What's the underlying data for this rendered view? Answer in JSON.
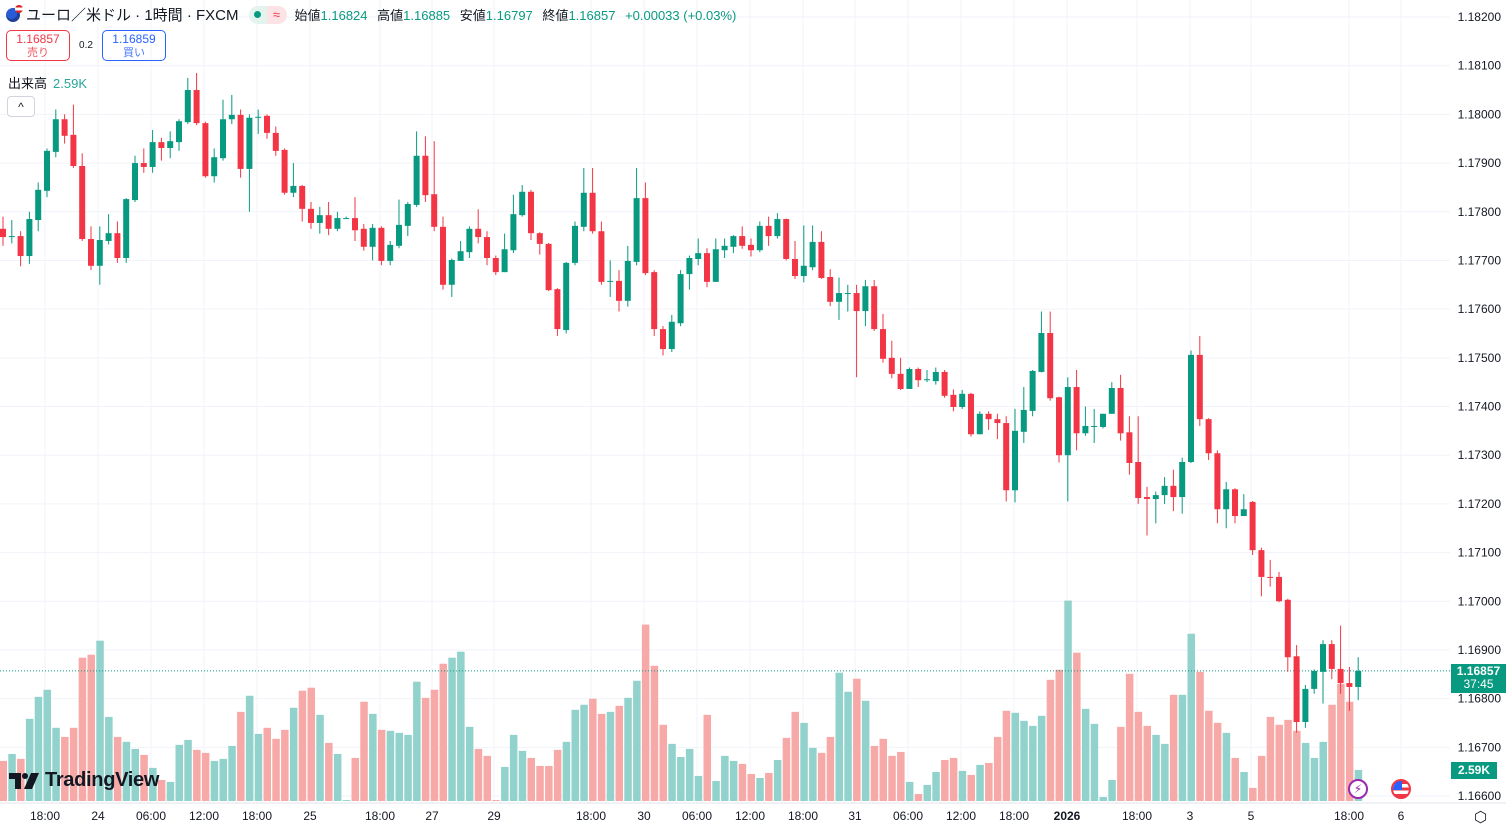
{
  "header": {
    "symbol_title": "ユーロ／米ドル · 1時間 · FXCM",
    "market_status": "open",
    "wave_icon": "≈",
    "ohlc": {
      "open_label": "始値",
      "open": "1.16824",
      "high_label": "高値",
      "high": "1.16885",
      "low_label": "安値",
      "low": "1.16797",
      "close_label": "終値",
      "close": "1.16857",
      "change": "+0.00033 (+0.03%)"
    }
  },
  "trade": {
    "sell_price": "1.16857",
    "sell_label": "売り",
    "spread": "0.2",
    "buy_price": "1.16859",
    "buy_label": "買い"
  },
  "volume_legend": {
    "label": "出来高",
    "value": "2.59K"
  },
  "collapse_icon": "^",
  "price_tag": {
    "price": "1.16857",
    "countdown": "37:45"
  },
  "volume_tag": "2.59K",
  "logo_text": "TradingView",
  "colors": {
    "up": "#089981",
    "down": "#f23645",
    "volume_up": "#92d2cc",
    "volume_down": "#f7a9a7",
    "buy": "#2962ff",
    "grid": "#f0f3fa"
  },
  "chart_data": {
    "type": "candlestick",
    "title": "ユーロ／米ドル · 1時間 · FXCM",
    "ylim": [
      1.166,
      1.182
    ],
    "y_ticks": [
      "1.18200",
      "1.18100",
      "1.18000",
      "1.17900",
      "1.17800",
      "1.17700",
      "1.17600",
      "1.17500",
      "1.17400",
      "1.17300",
      "1.17200",
      "1.17100",
      "1.17000",
      "1.16900",
      "1.16800",
      "1.16700",
      "1.16600"
    ],
    "x_ticks": [
      {
        "label": "18:00"
      },
      {
        "label": "24"
      },
      {
        "label": "06:00"
      },
      {
        "label": "12:00"
      },
      {
        "label": "18:00"
      },
      {
        "label": "25"
      },
      {
        "label": "18:00"
      },
      {
        "label": "27"
      },
      {
        "label": "29"
      },
      {
        "label": "18:00"
      },
      {
        "label": "30"
      },
      {
        "label": "06:00"
      },
      {
        "label": "12:00"
      },
      {
        "label": "18:00"
      },
      {
        "label": "31"
      },
      {
        "label": "06:00"
      },
      {
        "label": "12:00"
      },
      {
        "label": "18:00"
      },
      {
        "label": "2026",
        "bold": true
      },
      {
        "label": "18:00"
      },
      {
        "label": "3"
      },
      {
        "label": "5"
      },
      {
        "label": "18:00"
      },
      {
        "label": "6"
      }
    ],
    "grid": true,
    "ohlc_columns": [
      "open",
      "high",
      "low",
      "close"
    ],
    "candles": [
      [
        1.17765,
        1.1779,
        1.1773,
        1.17748
      ],
      [
        1.1775,
        1.17783,
        1.17735,
        1.1775
      ],
      [
        1.1775,
        1.1776,
        1.17688,
        1.17709
      ],
      [
        1.17709,
        1.178,
        1.17693,
        1.17785
      ],
      [
        1.17783,
        1.1786,
        1.1776,
        1.17845
      ],
      [
        1.17843,
        1.1793,
        1.1783,
        1.17925
      ],
      [
        1.17923,
        1.1801,
        1.17912,
        1.1799
      ],
      [
        1.1799,
        1.18,
        1.1794,
        1.17956
      ],
      [
        1.17958,
        1.1802,
        1.1789,
        1.17894
      ],
      [
        1.17894,
        1.1792,
        1.1774,
        1.17744
      ],
      [
        1.17744,
        1.1777,
        1.1768,
        1.17689
      ],
      [
        1.17689,
        1.1777,
        1.1765,
        1.17742
      ],
      [
        1.1774,
        1.17795,
        1.17733,
        1.17756
      ],
      [
        1.17756,
        1.1778,
        1.17695,
        1.17705
      ],
      [
        1.17705,
        1.17828,
        1.17695,
        1.17826
      ],
      [
        1.17824,
        1.17915,
        1.1782,
        1.179
      ],
      [
        1.179,
        1.1793,
        1.1788,
        1.17892
      ],
      [
        1.17892,
        1.17968,
        1.1788,
        1.17943
      ],
      [
        1.17943,
        1.17952,
        1.17905,
        1.17931
      ],
      [
        1.17931,
        1.17965,
        1.1791,
        1.17945
      ],
      [
        1.17943,
        1.1799,
        1.17925,
        1.17986
      ],
      [
        1.17984,
        1.18075,
        1.1798,
        1.1805
      ],
      [
        1.1805,
        1.18085,
        1.17978,
        1.17982
      ],
      [
        1.17982,
        1.17985,
        1.1787,
        1.17873
      ],
      [
        1.17873,
        1.1793,
        1.1786,
        1.17912
      ],
      [
        1.1791,
        1.1803,
        1.17905,
        1.1799
      ],
      [
        1.1799,
        1.1804,
        1.1798,
        1.17999
      ],
      [
        1.17999,
        1.1801,
        1.1787,
        1.17888
      ],
      [
        1.17888,
        1.18,
        1.178,
        1.17993
      ],
      [
        1.17993,
        1.1801,
        1.1796,
        1.17995
      ],
      [
        1.17997,
        1.18,
        1.1795,
        1.17962
      ],
      [
        1.17962,
        1.17975,
        1.17915,
        1.17925
      ],
      [
        1.17927,
        1.1793,
        1.17835,
        1.17839
      ],
      [
        1.17839,
        1.179,
        1.1783,
        1.17853
      ],
      [
        1.17853,
        1.17855,
        1.1778,
        1.17806
      ],
      [
        1.17806,
        1.1782,
        1.17765,
        1.17777
      ],
      [
        1.17777,
        1.1781,
        1.17755,
        1.17793
      ],
      [
        1.17793,
        1.1782,
        1.17752,
        1.17765
      ],
      [
        1.17765,
        1.178,
        1.1776,
        1.17787
      ],
      [
        1.17787,
        1.1779,
        1.17785,
        1.17787
      ],
      [
        1.17787,
        1.1783,
        1.1774,
        1.17762
      ],
      [
        1.17765,
        1.17775,
        1.1772,
        1.17728
      ],
      [
        1.17728,
        1.17775,
        1.177,
        1.17767
      ],
      [
        1.17767,
        1.1777,
        1.1769,
        1.17699
      ],
      [
        1.17699,
        1.1774,
        1.1769,
        1.17732
      ],
      [
        1.1773,
        1.17825,
        1.17725,
        1.17773
      ],
      [
        1.17771,
        1.1782,
        1.1775,
        1.17816
      ],
      [
        1.17814,
        1.17965,
        1.1781,
        1.17915
      ],
      [
        1.17915,
        1.17955,
        1.1782,
        1.17834
      ],
      [
        1.17836,
        1.17945,
        1.1776,
        1.17769
      ],
      [
        1.17769,
        1.1779,
        1.1764,
        1.1765
      ],
      [
        1.1765,
        1.17704,
        1.17625,
        1.17701
      ],
      [
        1.17699,
        1.1774,
        1.1771,
        1.17719
      ],
      [
        1.17717,
        1.1777,
        1.17705,
        1.17765
      ],
      [
        1.17765,
        1.17805,
        1.17735,
        1.17748
      ],
      [
        1.17748,
        1.1776,
        1.1769,
        1.17705
      ],
      [
        1.17705,
        1.1771,
        1.1767,
        1.17676
      ],
      [
        1.17676,
        1.17755,
        1.17676,
        1.17723
      ],
      [
        1.17721,
        1.17835,
        1.17715,
        1.17795
      ],
      [
        1.17793,
        1.17855,
        1.1779,
        1.17841
      ],
      [
        1.17841,
        1.17845,
        1.17742,
        1.17756
      ],
      [
        1.17756,
        1.17758,
        1.17712,
        1.17734
      ],
      [
        1.17734,
        1.17736,
        1.17637,
        1.17639
      ],
      [
        1.17641,
        1.17643,
        1.17545,
        1.17559
      ],
      [
        1.17557,
        1.17697,
        1.1755,
        1.17695
      ],
      [
        1.17695,
        1.1778,
        1.1769,
        1.17771
      ],
      [
        1.17769,
        1.1789,
        1.1776,
        1.17839
      ],
      [
        1.17839,
        1.1789,
        1.17755,
        1.1776
      ],
      [
        1.1776,
        1.1778,
        1.1765,
        1.17656
      ],
      [
        1.17658,
        1.177,
        1.17625,
        1.17658
      ],
      [
        1.17658,
        1.1768,
        1.17595,
        1.17617
      ],
      [
        1.17617,
        1.1773,
        1.17605,
        1.17699
      ],
      [
        1.17697,
        1.1789,
        1.1769,
        1.17828
      ],
      [
        1.17828,
        1.1786,
        1.1767,
        1.17674
      ],
      [
        1.17676,
        1.1768,
        1.17545,
        1.17559
      ],
      [
        1.17559,
        1.17565,
        1.17505,
        1.17518
      ],
      [
        1.17518,
        1.17588,
        1.17512,
        1.17574
      ],
      [
        1.17571,
        1.1768,
        1.17565,
        1.17672
      ],
      [
        1.17672,
        1.1771,
        1.1764,
        1.17705
      ],
      [
        1.17703,
        1.17745,
        1.1769,
        1.17715
      ],
      [
        1.17715,
        1.17725,
        1.17645,
        1.17656
      ],
      [
        1.17656,
        1.17745,
        1.17656,
        1.17723
      ],
      [
        1.17721,
        1.17745,
        1.17705,
        1.1773
      ],
      [
        1.17728,
        1.17752,
        1.17715,
        1.1775
      ],
      [
        1.1775,
        1.1777,
        1.17724,
        1.1773
      ],
      [
        1.17732,
        1.17745,
        1.17708,
        1.17721
      ],
      [
        1.17721,
        1.1778,
        1.17717,
        1.17771
      ],
      [
        1.17771,
        1.1779,
        1.1773,
        1.1775
      ],
      [
        1.1775,
        1.17797,
        1.17745,
        1.17785
      ],
      [
        1.17785,
        1.17786,
        1.177,
        1.17703
      ],
      [
        1.17703,
        1.1774,
        1.17662,
        1.17668
      ],
      [
        1.17668,
        1.17772,
        1.17655,
        1.17689
      ],
      [
        1.17686,
        1.17772,
        1.1768,
        1.17738
      ],
      [
        1.17738,
        1.1776,
        1.17662,
        1.17664
      ],
      [
        1.17666,
        1.17682,
        1.17606,
        1.17615
      ],
      [
        1.17615,
        1.17665,
        1.17578,
        1.17633
      ],
      [
        1.17633,
        1.1765,
        1.17595,
        1.17633
      ],
      [
        1.17633,
        1.1765,
        1.1746,
        1.17596
      ],
      [
        1.17596,
        1.1766,
        1.17565,
        1.17647
      ],
      [
        1.17647,
        1.1766,
        1.17555,
        1.17559
      ],
      [
        1.17559,
        1.1759,
        1.1749,
        1.17498
      ],
      [
        1.175,
        1.17535,
        1.17458,
        1.17467
      ],
      [
        1.17467,
        1.175,
        1.17434,
        1.17436
      ],
      [
        1.17436,
        1.1748,
        1.17436,
        1.17477
      ],
      [
        1.17477,
        1.1748,
        1.1744,
        1.17454
      ],
      [
        1.17456,
        1.17475,
        1.1745,
        1.17456
      ],
      [
        1.17452,
        1.1748,
        1.17445,
        1.17471
      ],
      [
        1.17471,
        1.17475,
        1.17418,
        1.17422
      ],
      [
        1.17424,
        1.17435,
        1.1739,
        1.17399
      ],
      [
        1.17399,
        1.17434,
        1.17395,
        1.17426
      ],
      [
        1.17426,
        1.17428,
        1.17338,
        1.17343
      ],
      [
        1.17343,
        1.1739,
        1.17343,
        1.17385
      ],
      [
        1.17385,
        1.1739,
        1.17352,
        1.17374
      ],
      [
        1.17374,
        1.17385,
        1.17333,
        1.17366
      ],
      [
        1.17366,
        1.1738,
        1.17205,
        1.17228
      ],
      [
        1.17228,
        1.17395,
        1.17203,
        1.1735
      ],
      [
        1.17348,
        1.1744,
        1.17325,
        1.17393
      ],
      [
        1.17391,
        1.17475,
        1.1738,
        1.17473
      ],
      [
        1.17471,
        1.17595,
        1.1747,
        1.17551
      ],
      [
        1.17551,
        1.17595,
        1.17412,
        1.17417
      ],
      [
        1.17419,
        1.1742,
        1.17285,
        1.173
      ],
      [
        1.173,
        1.1746,
        1.17205,
        1.1744
      ],
      [
        1.1744,
        1.17475,
        1.1731,
        1.17345
      ],
      [
        1.17345,
        1.174,
        1.1734,
        1.1736
      ],
      [
        1.1736,
        1.17395,
        1.17325,
        1.1736
      ],
      [
        1.17358,
        1.17385,
        1.17355,
        1.17385
      ],
      [
        1.17385,
        1.1745,
        1.17385,
        1.17438
      ],
      [
        1.17438,
        1.17465,
        1.1733,
        1.17345
      ],
      [
        1.17347,
        1.1738,
        1.1726,
        1.17284
      ],
      [
        1.17286,
        1.1738,
        1.172,
        1.17212
      ],
      [
        1.17214,
        1.17235,
        1.17135,
        1.1721
      ],
      [
        1.1721,
        1.17225,
        1.1716,
        1.17218
      ],
      [
        1.17218,
        1.17255,
        1.172,
        1.17237
      ],
      [
        1.17237,
        1.1727,
        1.17185,
        1.17214
      ],
      [
        1.17214,
        1.17295,
        1.1718,
        1.17286
      ],
      [
        1.17286,
        1.17515,
        1.17284,
        1.17506
      ],
      [
        1.17506,
        1.17545,
        1.1736,
        1.17374
      ],
      [
        1.17374,
        1.17376,
        1.1729,
        1.17304
      ],
      [
        1.17304,
        1.1731,
        1.1716,
        1.17189
      ],
      [
        1.17189,
        1.17245,
        1.1715,
        1.1723
      ],
      [
        1.1723,
        1.17232,
        1.1716,
        1.17175
      ],
      [
        1.17175,
        1.1722,
        1.17175,
        1.17189
      ],
      [
        1.17204,
        1.17206,
        1.17095,
        1.17105
      ],
      [
        1.17105,
        1.1711,
        1.1701,
        1.1705
      ],
      [
        1.1705,
        1.17085,
        1.1703,
        1.17048
      ],
      [
        1.1705,
        1.1706,
        1.16998,
        1.17
      ],
      [
        1.17003,
        1.17005,
        1.16855,
        1.16885
      ],
      [
        1.16887,
        1.1691,
        1.1673,
        1.16752
      ],
      [
        1.16752,
        1.16828,
        1.1674,
        1.1682
      ],
      [
        1.1682,
        1.1686,
        1.1681,
        1.16857
      ],
      [
        1.16855,
        1.1692,
        1.1679,
        1.16912
      ],
      [
        1.16912,
        1.1692,
        1.1684,
        1.16861
      ],
      [
        1.16861,
        1.1695,
        1.1681,
        1.16832
      ],
      [
        1.16832,
        1.16865,
        1.16775,
        1.16824
      ],
      [
        1.16824,
        1.16885,
        1.16797,
        1.16857
      ]
    ],
    "volume_unit": "K",
    "volume": [
      3.34,
      3.92,
      3.51,
      6.85,
      8.68,
      9.27,
      6.1,
      5.34,
      6.1,
      11.94,
      12.19,
      13.36,
      7.01,
      5.34,
      4.93,
      4.34,
      3.84,
      2.76,
      1.75,
      1.59,
      4.68,
      5.09,
      4.26,
      4.01,
      3.34,
      3.51,
      4.59,
      7.43,
      8.77,
      5.59,
      6.1,
      5.18,
      5.93,
      7.77,
      9.19,
      9.44,
      7.18,
      4.84,
      3.92,
      0.08,
      3.59,
      8.27,
      7.26,
      5.93,
      5.85,
      5.68,
      5.51,
      9.94,
      8.6,
      9.27,
      11.44,
      11.94,
      12.44,
      6.18,
      4.34,
      3.76,
      0.08,
      2.84,
      5.51,
      4.18,
      3.59,
      2.92,
      2.92,
      4.26,
      4.93,
      7.6,
      8.02,
      8.52,
      7.26,
      7.43,
      7.93,
      8.6,
      10.02,
      14.7,
      11.27,
      6.35,
      4.76,
      3.67,
      4.34,
      2.09,
      7.18,
      1.67,
      3.76,
      3.34,
      3.09,
      2.25,
      1.92,
      2.34,
      3.42,
      5.26,
      7.43,
      6.51,
      4.43,
      4.01,
      5.34,
      10.69,
      9.1,
      10.19,
      8.35,
      4.59,
      5.18,
      3.76,
      4.09,
      1.59,
      0.58,
      1.34,
      2.42,
      3.42,
      3.59,
      2.51,
      2.17,
      3.01,
      3.17,
      5.34,
      7.52,
      7.35,
      6.68,
      6.26,
      7.1,
      10.1,
      10.94,
      16.7,
      12.36,
      7.68,
      6.43,
      0.33,
      1.75,
      6.18,
      10.6,
      7.43,
      6.26,
      5.51,
      4.76,
      8.85,
      8.85,
      13.94,
      10.77,
      7.52,
      6.51,
      5.68,
      3.59,
      2.42,
      1.09,
      3.76,
      7.01,
      6.35,
      6.76,
      5.85,
      4.84,
      3.59,
      4.93,
      8.02,
      9.77,
      8.27,
      2.59
    ],
    "last_price": 1.16857
  },
  "icons": {
    "lightning": "lightning-icon",
    "flag": "us-flag-icon",
    "settings": "settings-icon"
  }
}
